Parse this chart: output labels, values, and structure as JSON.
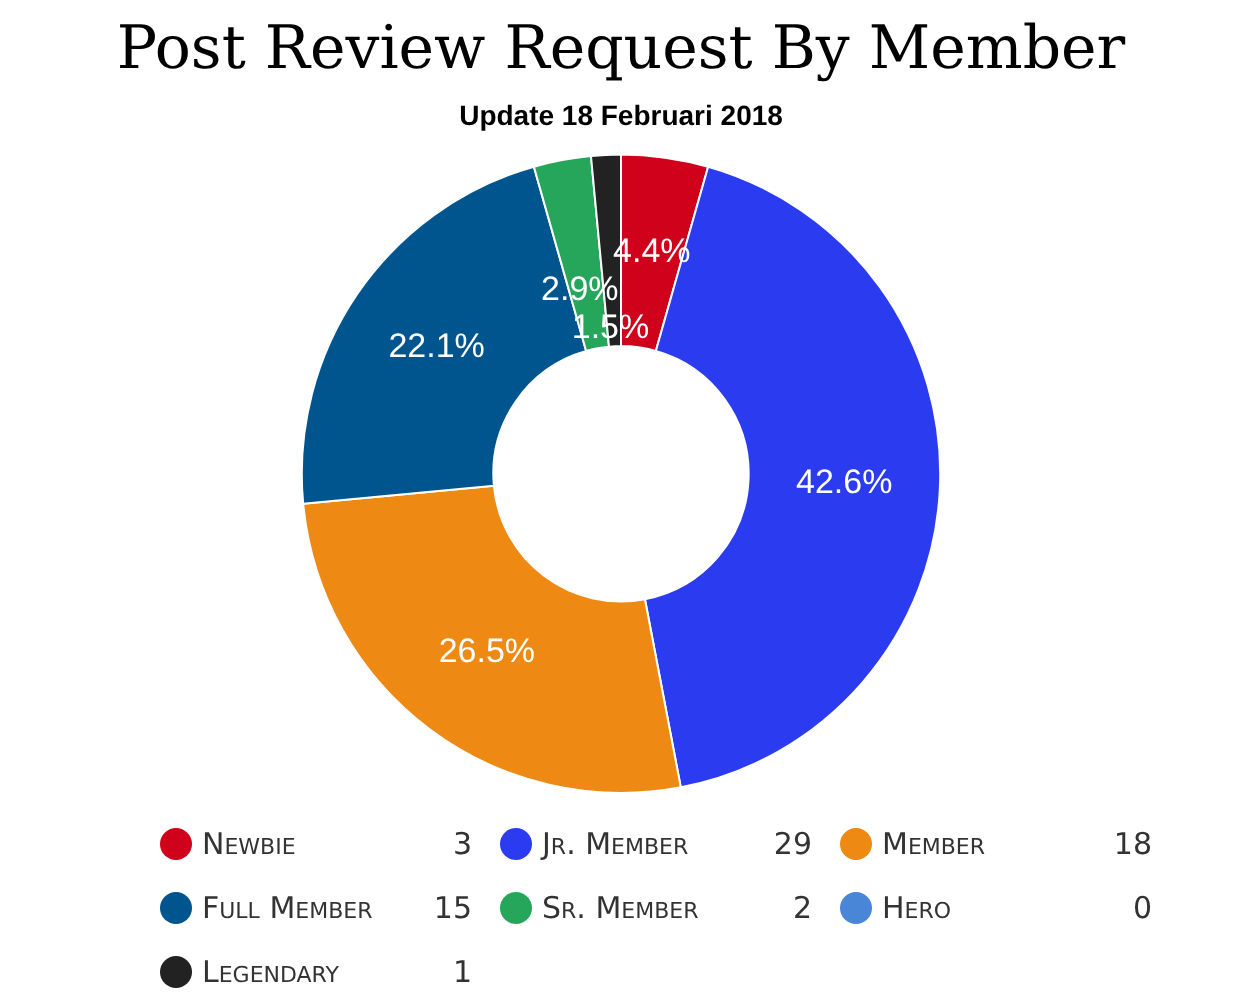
{
  "chart_data": {
    "type": "donut",
    "title": "Post Review Request By Member",
    "subtitle": "Update 18 Februari 2018",
    "categories": [
      "Newbie",
      "Jr. Member",
      "Member",
      "Full Member",
      "Sr. Member",
      "Hero",
      "Legendary"
    ],
    "values": [
      4.4,
      42.6,
      26.5,
      22.1,
      2.9,
      0,
      1.5
    ],
    "colors": [
      "#d0021b",
      "#2b3bef",
      "#ee8a14",
      "#00558f",
      "#26a65b",
      "#4a86d8",
      "#222222"
    ],
    "value_labels": [
      "4.4%",
      "42.6%",
      "26.5%",
      "22.1%",
      "2.9%",
      null,
      "1.5%"
    ],
    "annotations": [
      "3",
      "29",
      "18",
      "15",
      "2",
      "0",
      "1"
    ],
    "legend": "bottom"
  }
}
